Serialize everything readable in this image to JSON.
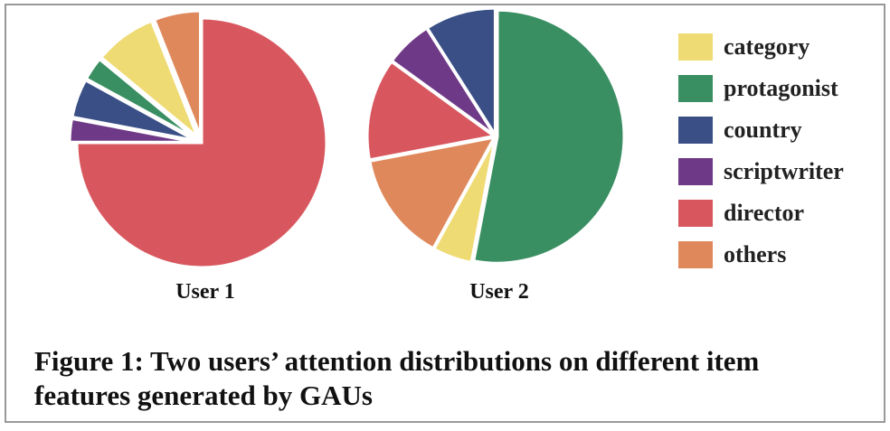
{
  "chart_data": [
    {
      "type": "pie",
      "title": "User 1",
      "categories": [
        "director",
        "scriptwriter",
        "country",
        "protagonist",
        "category",
        "others"
      ],
      "values": [
        75,
        3,
        5,
        3,
        8,
        6
      ]
    },
    {
      "type": "pie",
      "title": "User 2",
      "categories": [
        "protagonist",
        "category",
        "others",
        "director",
        "scriptwriter",
        "country"
      ],
      "values": [
        53,
        5,
        14,
        13,
        6,
        9
      ]
    }
  ],
  "legend": {
    "labels": [
      "category",
      "protagonist",
      "country",
      "scriptwriter",
      "director",
      "others"
    ],
    "colors": [
      "#efdb74",
      "#3a8f62",
      "#394f86",
      "#6e3986",
      "#d8575f",
      "#df885b"
    ]
  },
  "caption": [
    "Figure 1: Two users’ attention distributions on different item",
    "features generated by GAUs"
  ]
}
